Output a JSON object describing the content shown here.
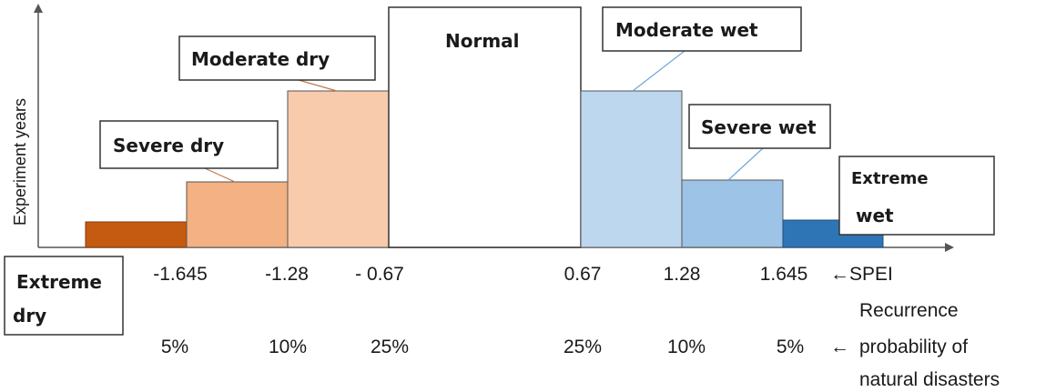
{
  "diagram": {
    "axis": {
      "ylabel": "Experiment years",
      "spei_marker": "←SPEI",
      "prob_marker": "←",
      "prob_label_lines": [
        "Recurrence",
        "probability of",
        "natural disasters"
      ]
    },
    "categories": [
      {
        "name": "Extreme dry",
        "color": "#c55a11"
      },
      {
        "name": "Severe dry",
        "color": "#f4b183"
      },
      {
        "name": "Moderate dry",
        "color": "#f8cbad"
      },
      {
        "name": "Normal",
        "color": "#ffffff"
      },
      {
        "name": "Moderate wet",
        "color": "#bdd7ee"
      },
      {
        "name": "Severe wet",
        "color": "#9dc3e6"
      },
      {
        "name": "Extreme wet",
        "color": "#2e75b6"
      }
    ],
    "labels": {
      "extreme_dry": [
        "Extreme",
        "dry"
      ],
      "severe_dry": "Severe dry",
      "moderate_dry": "Moderate dry",
      "normal": "Normal",
      "moderate_wet": "Moderate wet",
      "severe_wet": "Severe wet",
      "extreme_wet": [
        "Extreme",
        "wet"
      ]
    },
    "spei_thresholds": [
      "-1.645",
      "-1.28",
      "- 0.67",
      "0.67",
      "1.28",
      "1.645"
    ],
    "probabilities": [
      "5%",
      "10%",
      "25%",
      "25%",
      "10%",
      "5%"
    ]
  }
}
